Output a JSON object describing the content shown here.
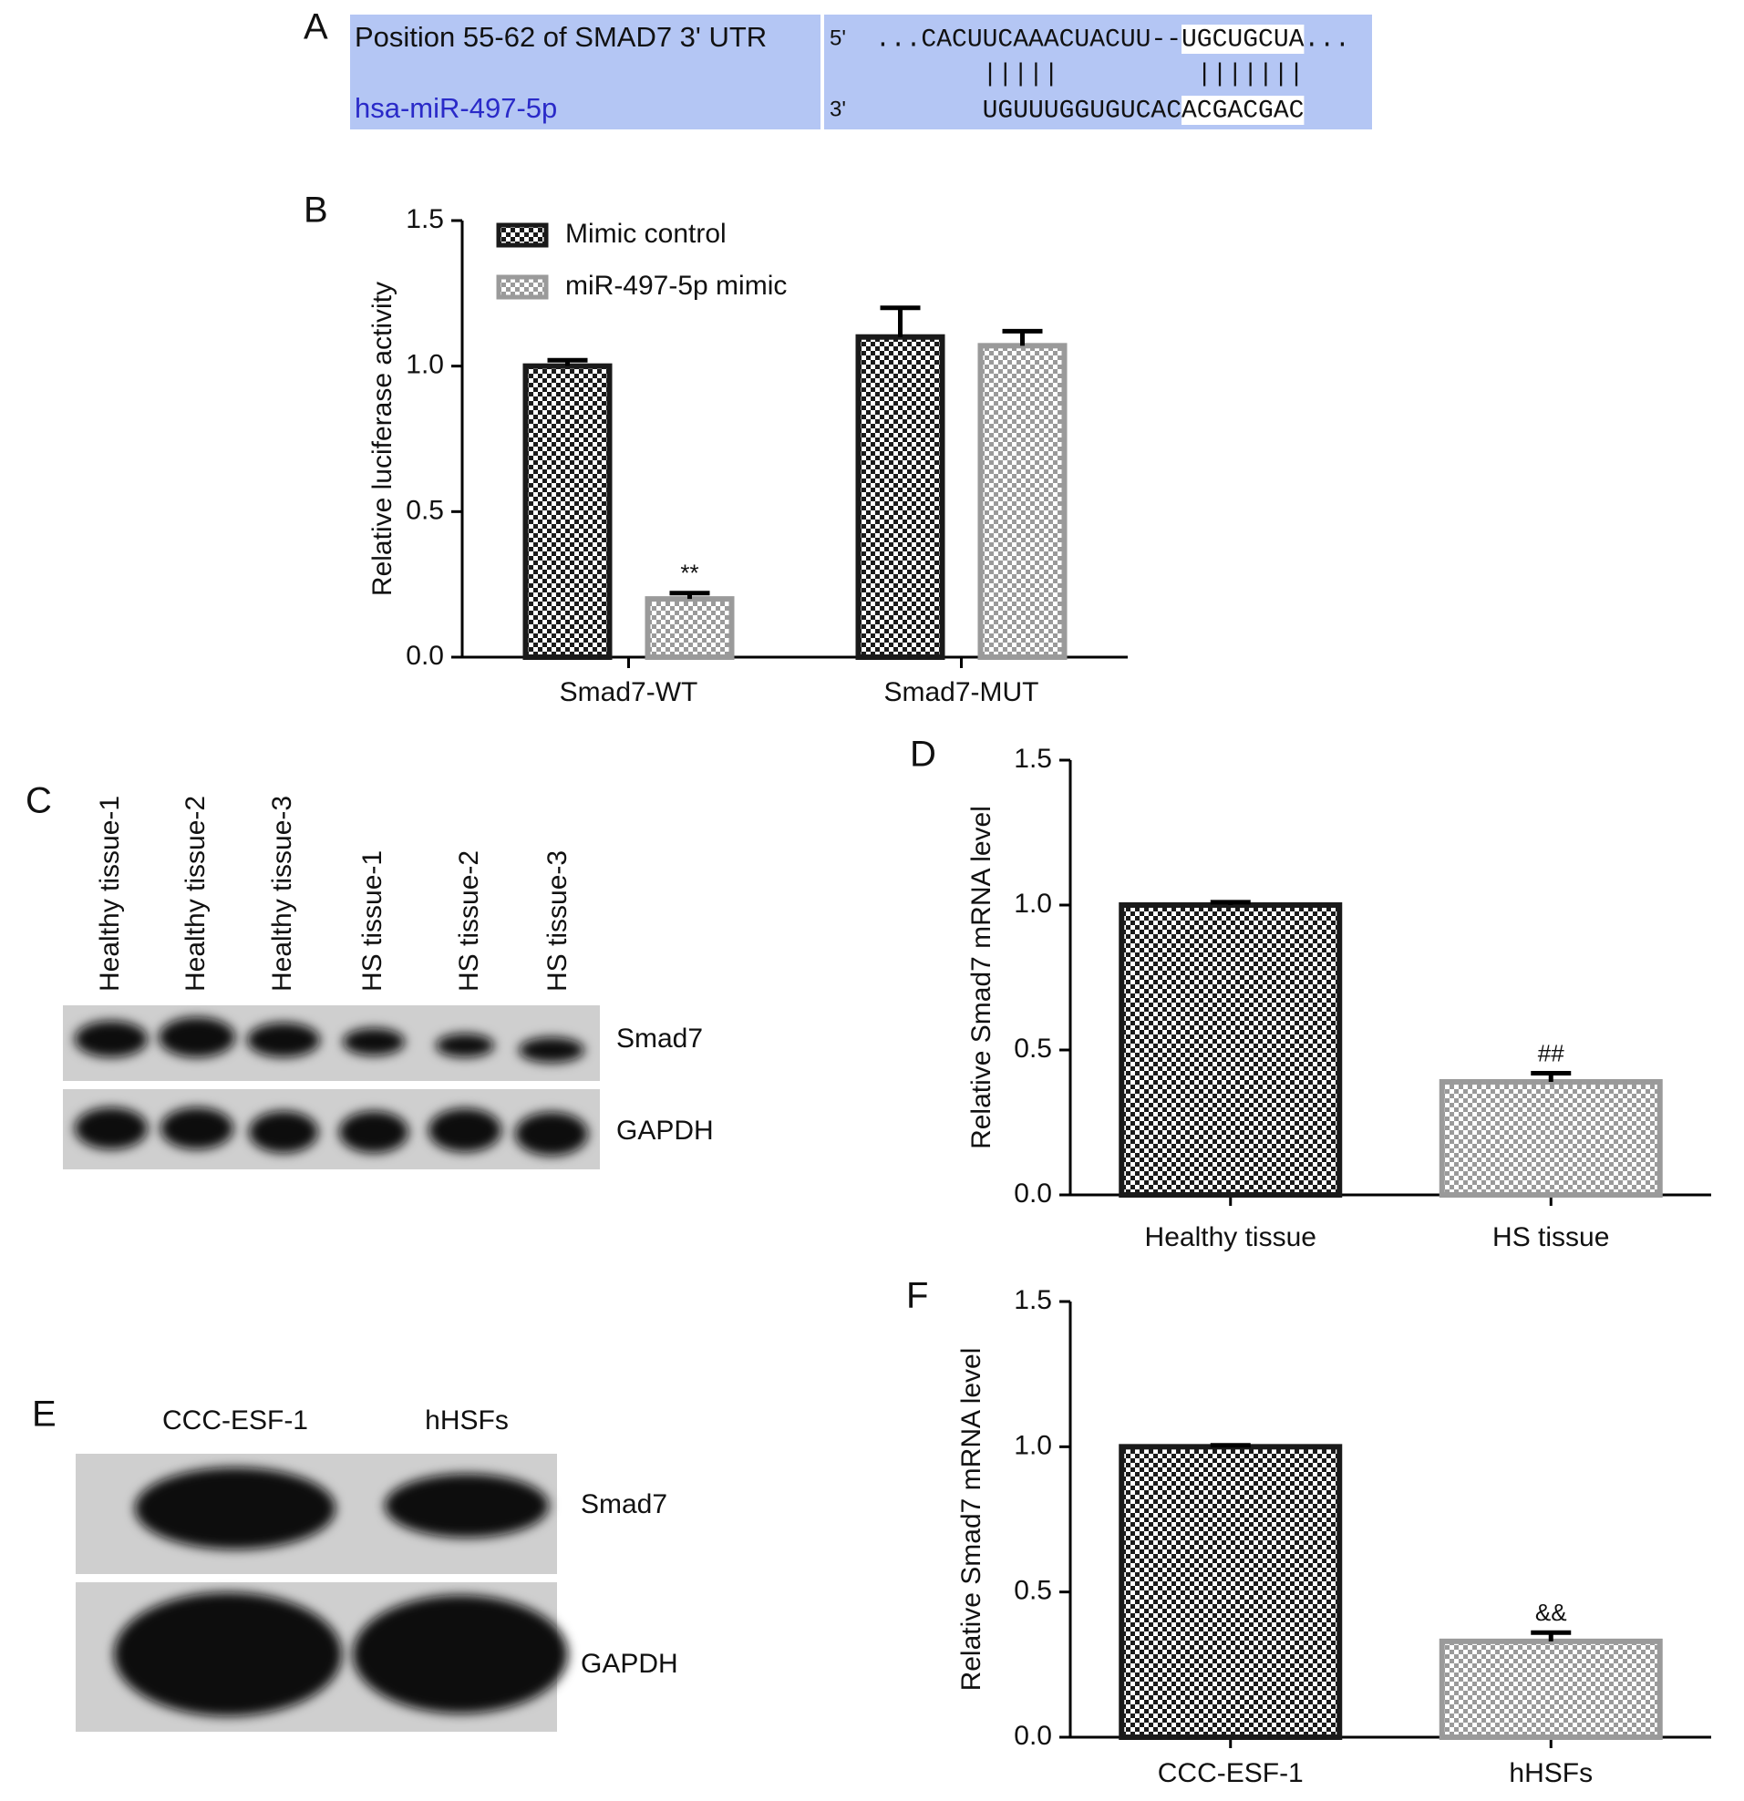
{
  "panel_a": {
    "letter": "A",
    "target": {
      "name": "Position 55-62 of SMAD7 3' UTR",
      "end": "5'",
      "sequence": "...CACUUCAAACUACUU--",
      "seed": "UGCUGCUA",
      "tail": "..."
    },
    "pairs": [
      "|||||",
      "|||||||"
    ],
    "mirna": {
      "name": "hsa-miR-497-5p",
      "end": "3'",
      "sequence": "UGUUUGGUGUCAC",
      "seed": "ACGACGAC"
    }
  },
  "panel_c": {
    "letter": "C",
    "lanes": [
      "Healthy tissue-1",
      "Healthy tissue-2",
      "Healthy tissue-3",
      "HS tissue-1",
      "HS tissue-2",
      "HS tissue-3"
    ],
    "rows": [
      "Smad7",
      "GAPDH"
    ]
  },
  "panel_e": {
    "letter": "E",
    "lanes": [
      "CCC-ESF-1",
      "hHSFs"
    ],
    "rows": [
      "Smad7",
      "GAPDH"
    ]
  },
  "chart_data": [
    {
      "type": "bar",
      "panel_label": "B",
      "y_label": "Relative luciferase activity",
      "categories": [
        "Smad7-WT",
        "Smad7-MUT"
      ],
      "series": [
        {
          "name": "Mimic control",
          "color": "#1a1a1a",
          "values": [
            1.0,
            1.1
          ],
          "errors": [
            0.02,
            0.1
          ],
          "significance": [
            null,
            null
          ]
        },
        {
          "name": "miR-497-5p mimic",
          "color": "#9a9a9a",
          "values": [
            0.2,
            1.07
          ],
          "errors": [
            0.02,
            0.05
          ],
          "significance": [
            "**",
            null
          ]
        }
      ],
      "ylim": [
        0,
        1.5
      ],
      "yticks": [
        {
          "value": 0,
          "label": "0.0"
        },
        0.5,
        {
          "value": 1,
          "label": "1.0"
        },
        1.5
      ]
    },
    {
      "type": "bar",
      "panel_label": "D",
      "y_label": "Relative Smad7 mRNA level",
      "categories": [
        "Healthy tissue",
        "HS tissue"
      ],
      "values": [
        1.0,
        0.39
      ],
      "errors": [
        0.01,
        0.03
      ],
      "significance": [
        null,
        "##"
      ],
      "colors": [
        "#1a1a1a",
        "#9a9a9a"
      ],
      "ylim": [
        0,
        1.5
      ],
      "yticks": [
        {
          "value": 0,
          "label": "0.0"
        },
        0.5,
        {
          "value": 1,
          "label": "1.0"
        },
        1.5
      ]
    },
    {
      "type": "bar",
      "panel_label": "F",
      "y_label": "Relative Smad7 mRNA level",
      "categories": [
        "CCC-ESF-1",
        "hHSFs"
      ],
      "values": [
        1.0,
        0.33
      ],
      "errors": [
        0.005,
        0.03
      ],
      "significance": [
        null,
        "&&"
      ],
      "colors": [
        "#1a1a1a",
        "#9a9a9a"
      ],
      "ylim": [
        0,
        1.5
      ],
      "yticks": [
        {
          "value": 0,
          "label": "0.0"
        },
        0.5,
        {
          "value": 1,
          "label": "1.0"
        },
        1.5
      ]
    }
  ]
}
